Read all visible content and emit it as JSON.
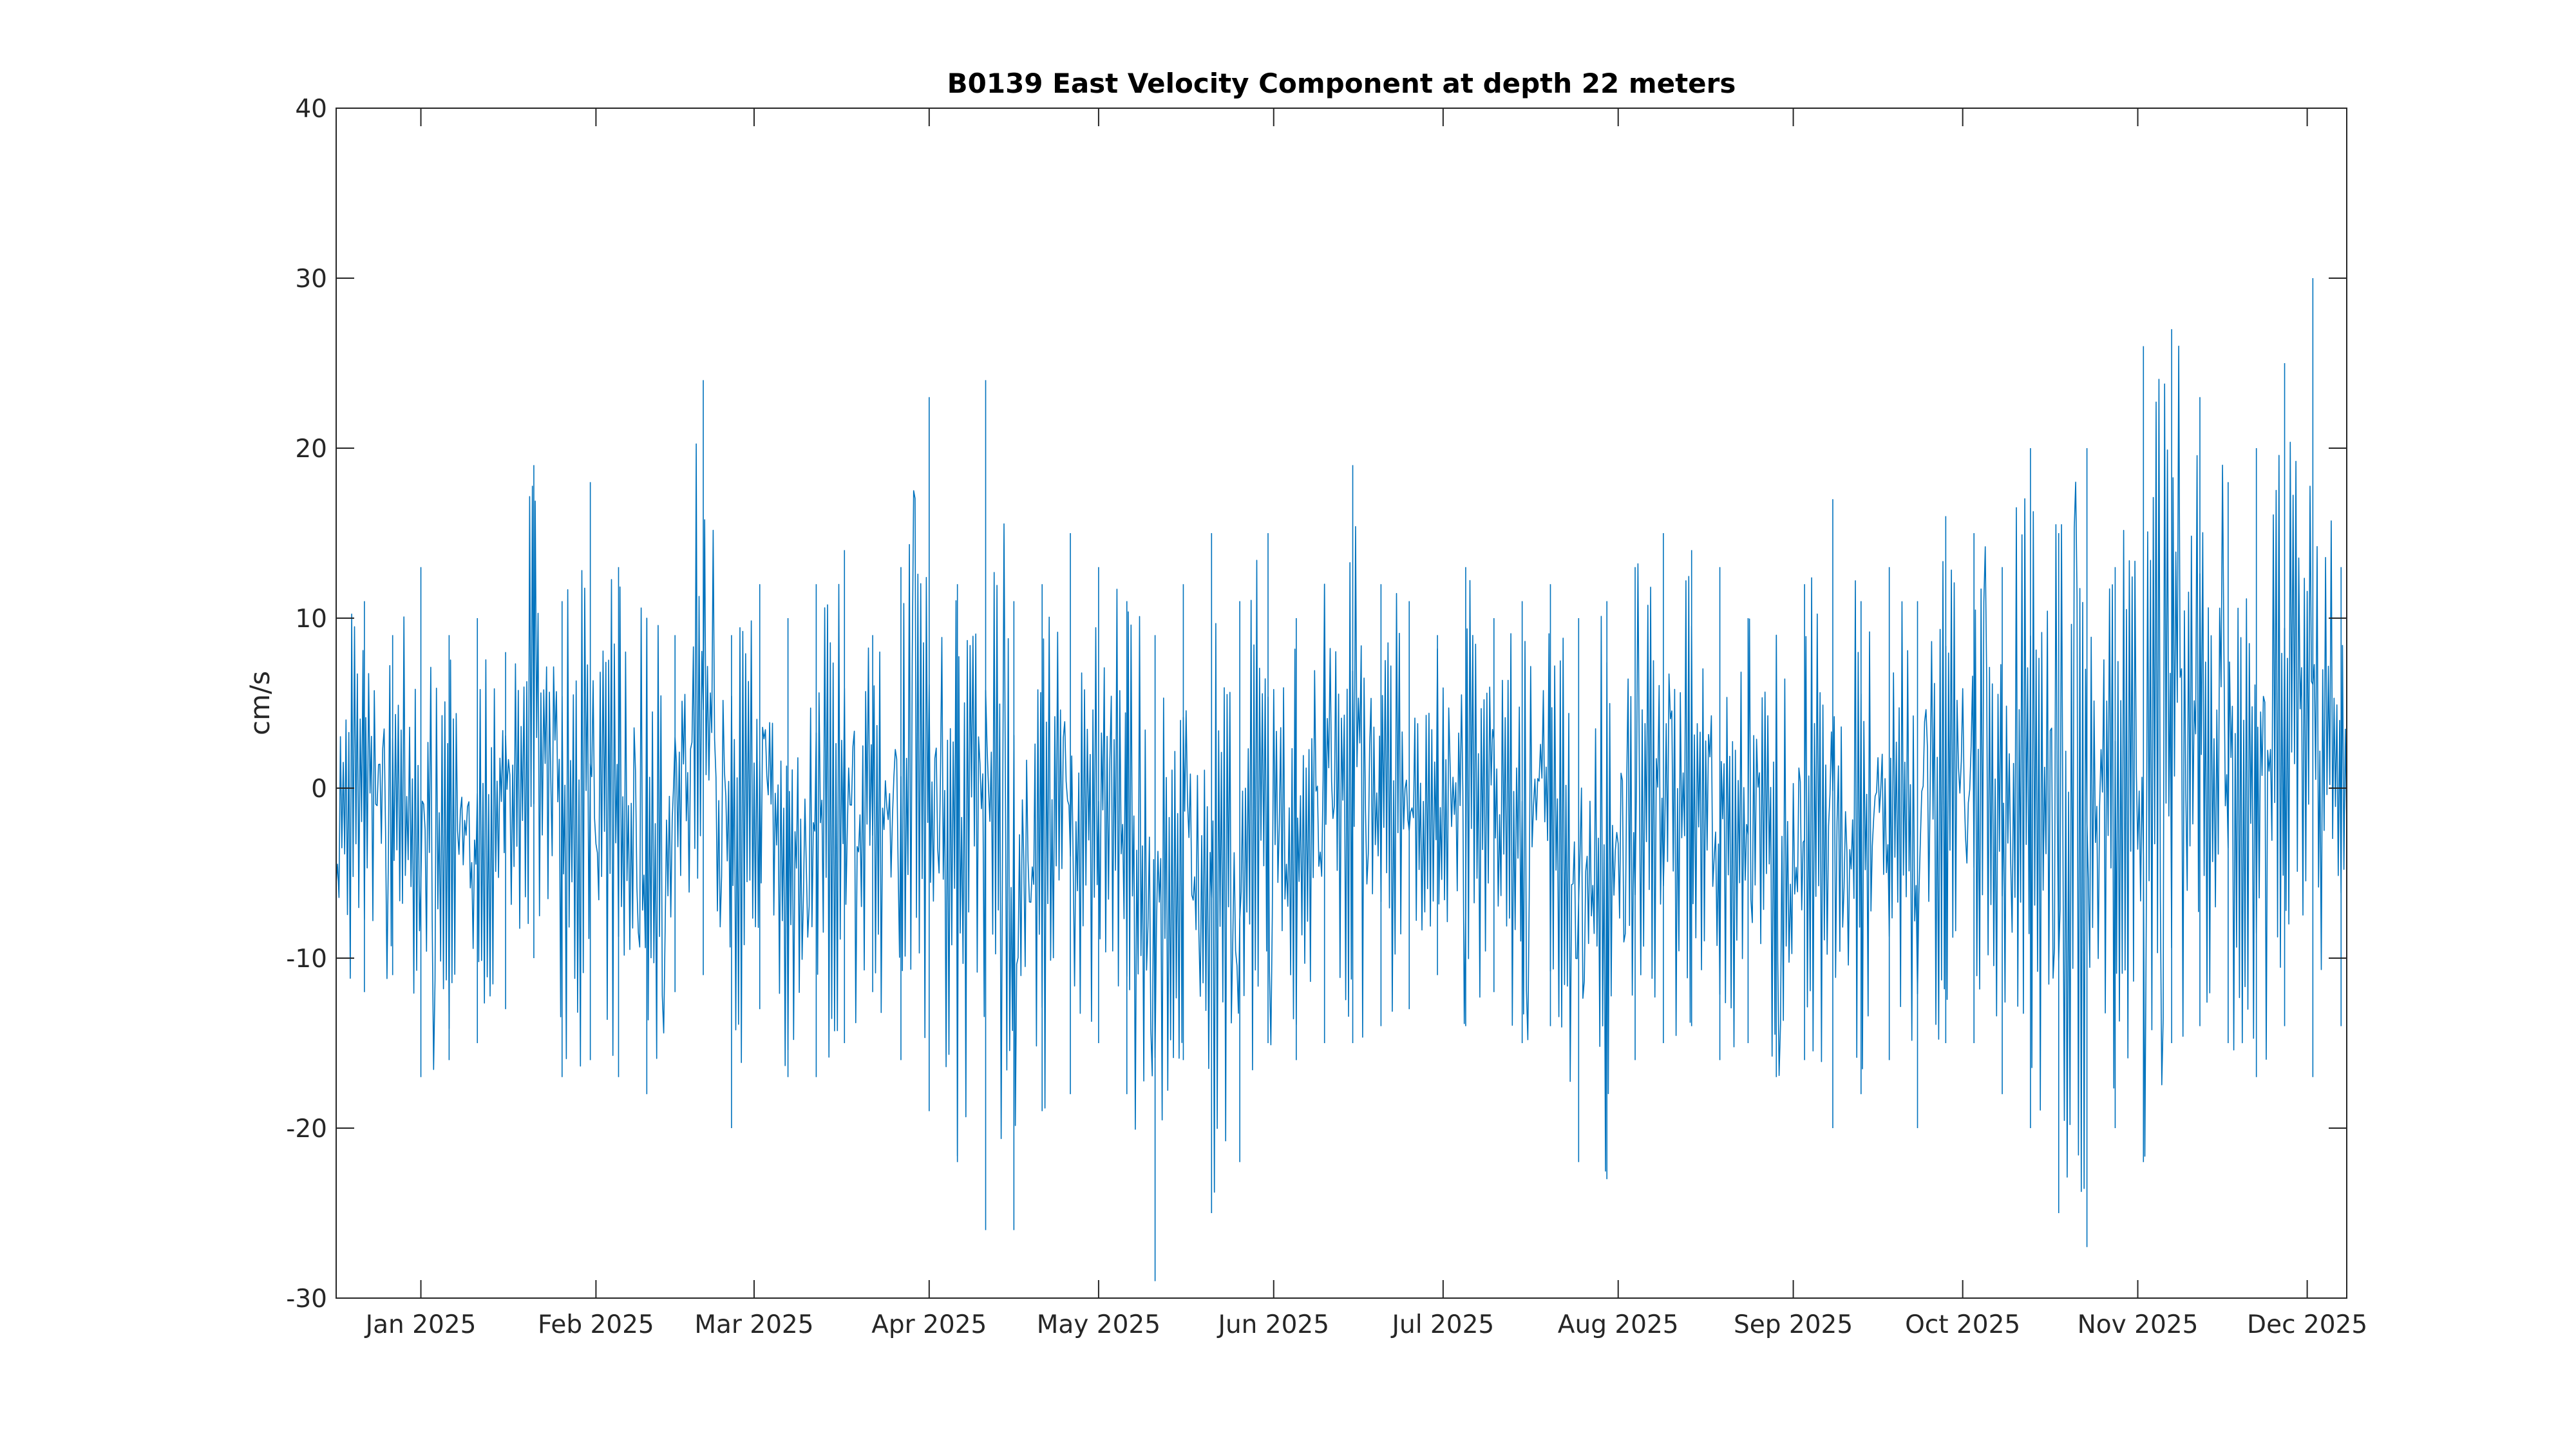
{
  "chart_data": {
    "type": "line",
    "title": "B0139 East Velocity Component at depth 22 meters",
    "xlabel": "",
    "ylabel": "cm/s",
    "ylim": [
      -30,
      40
    ],
    "yticks": [
      -30,
      -20,
      -10,
      0,
      10,
      20,
      30,
      40
    ],
    "xlim": [
      "2024-12-17",
      "2025-12-08"
    ],
    "xticks": [
      {
        "date": "2025-01-01",
        "label": "Jan 2025"
      },
      {
        "date": "2025-02-01",
        "label": "Feb 2025"
      },
      {
        "date": "2025-03-01",
        "label": "Mar 2025"
      },
      {
        "date": "2025-04-01",
        "label": "Apr 2025"
      },
      {
        "date": "2025-05-01",
        "label": "May 2025"
      },
      {
        "date": "2025-06-01",
        "label": "Jun 2025"
      },
      {
        "date": "2025-07-01",
        "label": "Jul 2025"
      },
      {
        "date": "2025-08-01",
        "label": "Aug 2025"
      },
      {
        "date": "2025-09-01",
        "label": "Sep 2025"
      },
      {
        "date": "2025-10-01",
        "label": "Oct 2025"
      },
      {
        "date": "2025-11-01",
        "label": "Nov 2025"
      },
      {
        "date": "2025-12-01",
        "label": "Dec 2025"
      }
    ],
    "grid": false,
    "legend": "none",
    "line_color": "#0072BD",
    "series": [
      {
        "x": [
          "2024-12-17",
          "2024-12-22",
          "2024-12-27",
          "2025-01-01",
          "2025-01-06",
          "2025-01-11",
          "2025-01-16",
          "2025-01-21",
          "2025-01-26",
          "2025-01-31",
          "2025-02-05",
          "2025-02-10",
          "2025-02-15",
          "2025-02-20",
          "2025-02-25",
          "2025-03-02",
          "2025-03-07",
          "2025-03-12",
          "2025-03-17",
          "2025-03-22",
          "2025-03-27",
          "2025-04-01",
          "2025-04-06",
          "2025-04-11",
          "2025-04-16",
          "2025-04-21",
          "2025-04-26",
          "2025-05-01",
          "2025-05-06",
          "2025-05-11",
          "2025-05-16",
          "2025-05-21",
          "2025-05-26",
          "2025-05-31",
          "2025-06-05",
          "2025-06-10",
          "2025-06-15",
          "2025-06-20",
          "2025-06-25",
          "2025-06-30",
          "2025-07-05",
          "2025-07-10",
          "2025-07-15",
          "2025-07-20",
          "2025-07-25",
          "2025-07-30",
          "2025-08-04",
          "2025-08-09",
          "2025-08-14",
          "2025-08-19",
          "2025-08-24",
          "2025-08-29",
          "2025-09-03",
          "2025-09-08",
          "2025-09-13",
          "2025-09-18",
          "2025-09-23",
          "2025-09-28",
          "2025-10-03",
          "2025-10-08",
          "2025-10-13",
          "2025-10-18",
          "2025-10-23",
          "2025-10-28",
          "2025-11-02",
          "2025-11-07",
          "2025-11-12",
          "2025-11-17",
          "2025-11-22",
          "2025-11-27",
          "2025-12-02",
          "2025-12-07"
        ],
        "y_max": [
          14,
          11,
          9,
          13,
          9,
          10,
          8,
          19,
          11,
          18,
          13,
          10,
          9,
          24,
          9,
          12,
          10,
          12,
          14,
          9,
          13,
          23,
          12,
          24,
          11,
          12,
          15,
          13,
          11,
          9,
          12,
          15,
          11,
          15,
          10,
          12,
          19,
          12,
          11,
          9,
          13,
          10,
          11,
          12,
          10,
          11,
          13,
          15,
          14,
          13,
          10,
          9,
          12,
          17,
          11,
          13,
          11,
          16,
          15,
          13,
          20,
          15,
          20,
          13,
          26,
          27,
          23,
          18,
          20,
          25,
          30,
          13
        ],
        "y_min": [
          -13,
          -12,
          -11,
          -17,
          -16,
          -15,
          -13,
          -10,
          -17,
          -16,
          -17,
          -18,
          -12,
          -11,
          -20,
          -13,
          -17,
          -17,
          -15,
          -12,
          -16,
          -19,
          -22,
          -26,
          -26,
          -19,
          -18,
          -15,
          -18,
          -29,
          -16,
          -25,
          -22,
          -15,
          -16,
          -15,
          -15,
          -14,
          -13,
          -11,
          -14,
          -12,
          -15,
          -14,
          -22,
          -23,
          -16,
          -15,
          -14,
          -16,
          -15,
          -17,
          -16,
          -20,
          -18,
          -16,
          -20,
          -15,
          -15,
          -18,
          -20,
          -25,
          -27,
          -20,
          -22,
          -15,
          -14,
          -15,
          -17,
          -14,
          -17,
          -14
        ]
      }
    ]
  }
}
